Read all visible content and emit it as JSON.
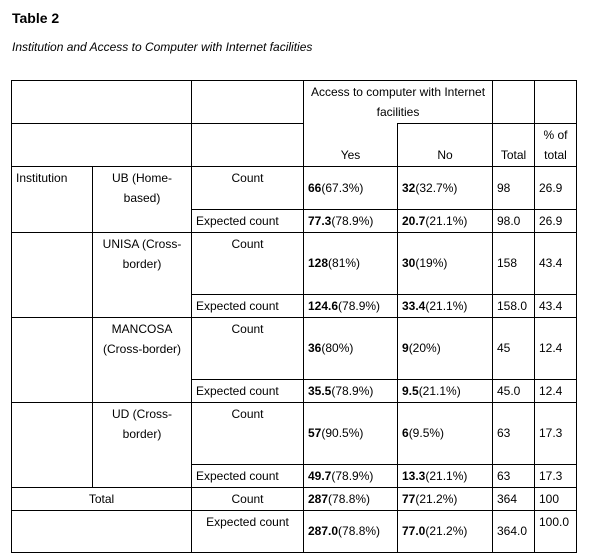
{
  "title": "Table 2",
  "subtitle": "Institution and Access to Computer with Internet facilities",
  "header": {
    "group": "Access to computer with Internet facilities",
    "yes": "Yes",
    "no": "No",
    "total": "Total",
    "pct": "% of total"
  },
  "row_group_label": "Institution",
  "count_label": "Count",
  "expected_label": "Expected count",
  "institutions": [
    {
      "name": "UB (Home-based)",
      "count": {
        "yes_n": "66",
        "yes_p": "(67.3%)",
        "no_n": "32",
        "no_p": "(32.7%)",
        "total": "98",
        "pct": "26.9"
      },
      "expected": {
        "yes_n": "77.3",
        "yes_p": "(78.9%)",
        "no_n": "20.7",
        "no_p": "(21.1%)",
        "total": "98.0",
        "pct": "26.9"
      }
    },
    {
      "name": "UNISA (Cross-border)",
      "count": {
        "yes_n": "128",
        "yes_p": "(81%)",
        "no_n": "30",
        "no_p": "(19%)",
        "total": "158",
        "pct": "43.4"
      },
      "expected": {
        "yes_n": "124.6",
        "yes_p": "(78.9%)",
        "no_n": "33.4",
        "no_p": "(21.1%)",
        "total": "158.0",
        "pct": "43.4"
      }
    },
    {
      "name": "MANCOSA (Cross-border)",
      "count": {
        "yes_n": "36",
        "yes_p": "(80%)",
        "no_n": "9",
        "no_p": "(20%)",
        "total": "45",
        "pct": "12.4"
      },
      "expected": {
        "yes_n": "35.5",
        "yes_p": "(78.9%)",
        "no_n": "9.5",
        "no_p": "(21.1%)",
        "total": "45.0",
        "pct": "12.4"
      }
    },
    {
      "name": "UD (Cross-border)",
      "count": {
        "yes_n": "57",
        "yes_p": "(90.5%)",
        "no_n": "6",
        "no_p": "(9.5%)",
        "total": "63",
        "pct": "17.3"
      },
      "expected": {
        "yes_n": "49.7",
        "yes_p": "(78.9%)",
        "no_n": "13.3",
        "no_p": "(21.1%)",
        "total": "63",
        "pct": "17.3"
      }
    }
  ],
  "total_row": {
    "label": "Total",
    "count": {
      "yes_n": "287",
      "yes_p": "(78.8%)",
      "no_n": "77",
      "no_p": "(21.2%)",
      "total": "364",
      "pct": "100"
    },
    "expected": {
      "yes_n": "287.0",
      "yes_p": "(78.8%)",
      "no_n": "77.0",
      "no_p": "(21.2%)",
      "total": "364.0",
      "pct": "100.0"
    }
  }
}
